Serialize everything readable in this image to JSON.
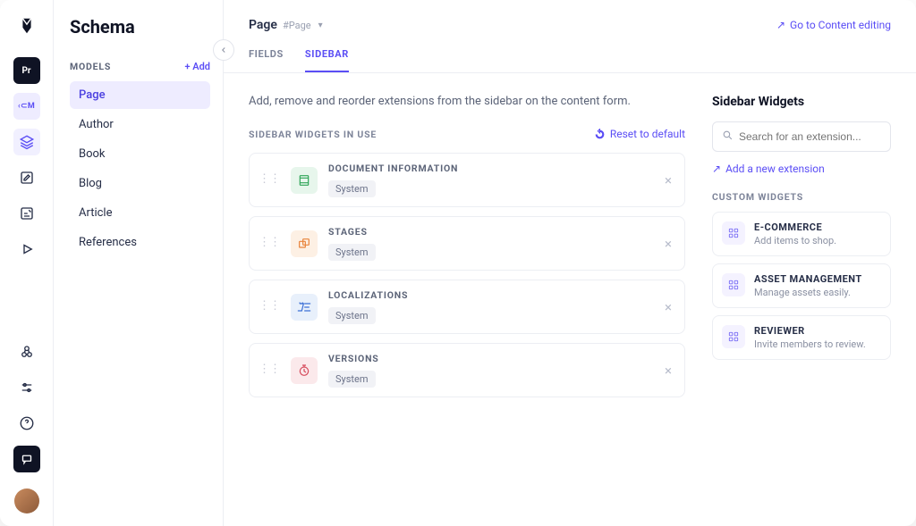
{
  "colors": {
    "accent": "#5b4ef5",
    "text": "#0f1324",
    "muted": "#7d8499",
    "border": "#eceef3"
  },
  "rail": {
    "badges": {
      "pr": "Pr",
      "cm": "‹⊂M"
    }
  },
  "sidebar": {
    "title": "Schema",
    "section_label": "MODELS",
    "add_label": "+ Add",
    "models": [
      {
        "label": "Page",
        "active": true
      },
      {
        "label": "Author",
        "active": false
      },
      {
        "label": "Book",
        "active": false
      },
      {
        "label": "Blog",
        "active": false
      },
      {
        "label": "Article",
        "active": false
      },
      {
        "label": "References",
        "active": false
      }
    ]
  },
  "header": {
    "breadcrumb_name": "Page",
    "breadcrumb_slug": "#Page",
    "goto_label": "Go to Content editing"
  },
  "tabs": [
    {
      "label": "FIELDS",
      "active": false
    },
    {
      "label": "SIDEBAR",
      "active": true
    }
  ],
  "intro": "Add, remove and reorder extensions from the sidebar on the content form.",
  "widgets_section_label": "SIDEBAR WIDGETS IN USE",
  "reset_label": "Reset to default",
  "widgets": [
    {
      "title": "DOCUMENT INFORMATION",
      "tag": "System",
      "color": "green"
    },
    {
      "title": "STAGES",
      "tag": "System",
      "color": "orange"
    },
    {
      "title": "LOCALIZATIONS",
      "tag": "System",
      "color": "blue"
    },
    {
      "title": "VERSIONS",
      "tag": "System",
      "color": "red"
    }
  ],
  "right": {
    "title": "Sidebar Widgets",
    "search_placeholder": "Search for an extension...",
    "add_extension_label": "Add a new extension",
    "custom_label": "CUSTOM WIDGETS",
    "custom": [
      {
        "title": "E-COMMERCE",
        "desc": "Add items to shop."
      },
      {
        "title": "ASSET MANAGEMENT",
        "desc": "Manage assets easily."
      },
      {
        "title": "REVIEWER",
        "desc": "Invite members to review."
      }
    ]
  }
}
